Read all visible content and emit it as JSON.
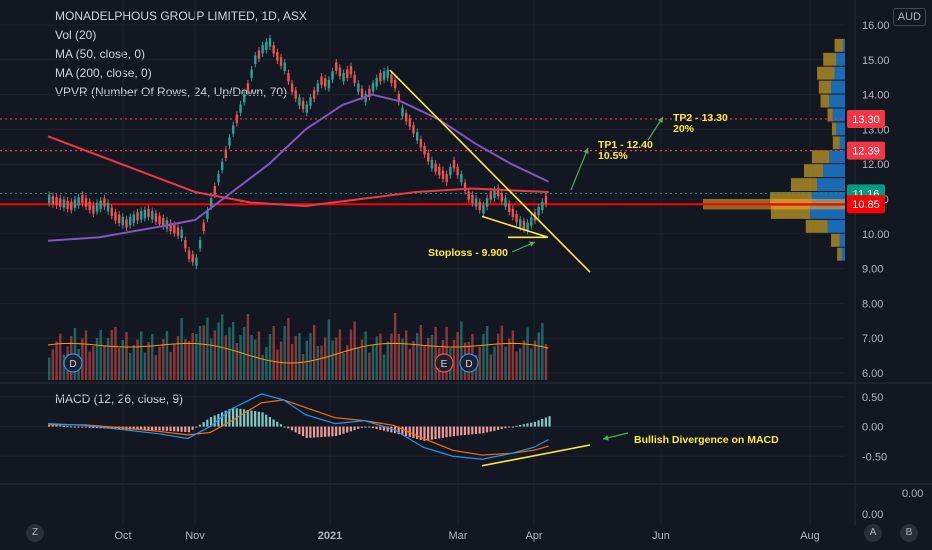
{
  "header": {
    "title": "MONADELPHOUS GROUP LIMITED, 1D, ASX",
    "indicators": [
      "Vol (20)",
      "MA (50, close, 0)",
      "MA (200, close, 0)",
      "VPVR (Number Of Rows, 24, Up/Down, 70)"
    ],
    "macd_label": "MACD (12, 26, close, 9)"
  },
  "currency": "AUD",
  "nav": {
    "left": "Z",
    "right_a": "A",
    "right_b": "B"
  },
  "colors": {
    "background": "#131722",
    "up": "#26a69a",
    "down": "#ef5350",
    "ma50": "#7e57c2",
    "ma200": "#f23645",
    "annotation": "#ffeb3b",
    "arrow": "#4caf50",
    "macd": "#2196f3",
    "signal": "#ff6d00",
    "grid": "#1e222d",
    "text": "#b2b5be"
  },
  "chart_data": {
    "type": "candlestick",
    "price_axis": {
      "ticks": [
        "16.00",
        "15.00",
        "14.00",
        "13.00",
        "12.00",
        "11.00",
        "10.00",
        "9.00",
        "8.00",
        "7.00",
        "6.00"
      ],
      "range": [
        5.8,
        16.2
      ]
    },
    "macd_axis": {
      "ticks": [
        "0.50",
        "0.00",
        "-0.50"
      ],
      "range": [
        -0.9,
        0.65
      ]
    },
    "extra_axis": {
      "ticks": [
        "0.00",
        "0.00"
      ]
    },
    "time_axis": {
      "labels": [
        "Oct",
        "Nov",
        "2021",
        "Mar",
        "Apr",
        "Jun",
        "Aug"
      ]
    },
    "price_labels": [
      {
        "value": 13.3,
        "text": "13.30",
        "color": "#f23645"
      },
      {
        "value": 12.39,
        "text": "12.39",
        "color": "#f23645"
      },
      {
        "value": 11.16,
        "text": "11.16",
        "color": "#089981"
      },
      {
        "value": 10.85,
        "text": "10.85",
        "color": "#ff0000"
      }
    ],
    "horizontal_lines": [
      {
        "value": 13.3,
        "style": "dotted",
        "color": "#f23645"
      },
      {
        "value": 12.39,
        "style": "dotted",
        "color": "#f23645"
      },
      {
        "value": 11.16,
        "style": "dotted",
        "color": "#089981"
      },
      {
        "value": 10.85,
        "style": "solid",
        "color": "#ff0000"
      }
    ],
    "annotations": [
      {
        "text": "TP2 - 13.30",
        "sub": "20%",
        "price": 13.5
      },
      {
        "text": "TP1 - 12.40",
        "sub": "10.5%",
        "price": 12.5
      },
      {
        "text": "Stoploss - 9.900",
        "price": 9.6
      }
    ],
    "macd_annotation": "Bullish Divergence on MACD",
    "event_markers": [
      "D",
      "E",
      "D"
    ],
    "price_path": [
      [
        0,
        11.0
      ],
      [
        3,
        10.9
      ],
      [
        6,
        10.8
      ],
      [
        9,
        11.0
      ],
      [
        12,
        10.7
      ],
      [
        15,
        10.9
      ],
      [
        18,
        10.5
      ],
      [
        21,
        10.3
      ],
      [
        24,
        10.5
      ],
      [
        27,
        10.6
      ],
      [
        30,
        10.4
      ],
      [
        33,
        10.2
      ],
      [
        36,
        10.0
      ],
      [
        38,
        9.4
      ],
      [
        40,
        9.2
      ],
      [
        42,
        10.2
      ],
      [
        44,
        10.9
      ],
      [
        46,
        11.6
      ],
      [
        48,
        12.3
      ],
      [
        50,
        13.0
      ],
      [
        52,
        13.6
      ],
      [
        54,
        14.2
      ],
      [
        56,
        15.0
      ],
      [
        58,
        15.3
      ],
      [
        60,
        15.5
      ],
      [
        62,
        15.1
      ],
      [
        64,
        14.8
      ],
      [
        66,
        14.2
      ],
      [
        68,
        13.8
      ],
      [
        70,
        13.6
      ],
      [
        72,
        14.0
      ],
      [
        74,
        14.4
      ],
      [
        76,
        14.3
      ],
      [
        78,
        14.8
      ],
      [
        80,
        14.5
      ],
      [
        82,
        14.7
      ],
      [
        84,
        14.2
      ],
      [
        86,
        13.9
      ],
      [
        88,
        14.2
      ],
      [
        90,
        14.5
      ],
      [
        92,
        14.6
      ],
      [
        94,
        14.3
      ],
      [
        96,
        13.5
      ],
      [
        98,
        13.2
      ],
      [
        100,
        12.8
      ],
      [
        102,
        12.4
      ],
      [
        104,
        12.0
      ],
      [
        106,
        11.8
      ],
      [
        108,
        11.6
      ],
      [
        110,
        12.0
      ],
      [
        112,
        11.6
      ],
      [
        114,
        11.1
      ],
      [
        116,
        10.9
      ],
      [
        118,
        10.7
      ],
      [
        120,
        11.1
      ],
      [
        122,
        11.2
      ],
      [
        124,
        10.9
      ],
      [
        126,
        10.6
      ],
      [
        128,
        10.3
      ],
      [
        130,
        10.2
      ],
      [
        132,
        10.5
      ],
      [
        134,
        10.8
      ],
      [
        136,
        11.16
      ]
    ],
    "ma50": [
      [
        0,
        9.8
      ],
      [
        14,
        9.9
      ],
      [
        30,
        10.2
      ],
      [
        40,
        10.4
      ],
      [
        50,
        11.2
      ],
      [
        60,
        12.0
      ],
      [
        70,
        13.0
      ],
      [
        80,
        13.7
      ],
      [
        88,
        14.0
      ],
      [
        96,
        13.8
      ],
      [
        106,
        13.3
      ],
      [
        116,
        12.6
      ],
      [
        126,
        12.0
      ],
      [
        136,
        11.5
      ]
    ],
    "ma200": [
      [
        0,
        12.8
      ],
      [
        20,
        12.0
      ],
      [
        40,
        11.2
      ],
      [
        55,
        10.9
      ],
      [
        70,
        10.8
      ],
      [
        85,
        11.0
      ],
      [
        100,
        11.2
      ],
      [
        115,
        11.3
      ],
      [
        136,
        11.2
      ]
    ],
    "macd_line": [
      [
        0,
        0.05
      ],
      [
        10,
        0.02
      ],
      [
        20,
        -0.05
      ],
      [
        30,
        -0.12
      ],
      [
        38,
        -0.2
      ],
      [
        44,
        0.0
      ],
      [
        50,
        0.3
      ],
      [
        58,
        0.55
      ],
      [
        64,
        0.45
      ],
      [
        70,
        0.2
      ],
      [
        78,
        0.05
      ],
      [
        86,
        0.1
      ],
      [
        94,
        -0.05
      ],
      [
        102,
        -0.35
      ],
      [
        110,
        -0.5
      ],
      [
        118,
        -0.55
      ],
      [
        126,
        -0.45
      ],
      [
        132,
        -0.35
      ],
      [
        136,
        -0.22
      ]
    ],
    "signal_line": [
      [
        0,
        0.03
      ],
      [
        10,
        0.03
      ],
      [
        20,
        -0.02
      ],
      [
        30,
        -0.08
      ],
      [
        38,
        -0.14
      ],
      [
        44,
        -0.1
      ],
      [
        50,
        0.1
      ],
      [
        58,
        0.4
      ],
      [
        64,
        0.45
      ],
      [
        70,
        0.32
      ],
      [
        78,
        0.15
      ],
      [
        86,
        0.1
      ],
      [
        94,
        0.02
      ],
      [
        102,
        -0.2
      ],
      [
        110,
        -0.4
      ],
      [
        118,
        -0.48
      ],
      [
        126,
        -0.45
      ],
      [
        132,
        -0.4
      ],
      [
        136,
        -0.33
      ]
    ],
    "volume_profile": [
      {
        "price": 15.4,
        "up": 10,
        "down": 2
      },
      {
        "price": 15.0,
        "up": 15,
        "down": 10
      },
      {
        "price": 14.6,
        "up": 20,
        "down": 12
      },
      {
        "price": 14.2,
        "up": 14,
        "down": 16
      },
      {
        "price": 13.8,
        "up": 10,
        "down": 18
      },
      {
        "price": 13.4,
        "up": 6,
        "down": 14
      },
      {
        "price": 13.0,
        "up": 5,
        "down": 10
      },
      {
        "price": 12.6,
        "up": 8,
        "down": 6
      },
      {
        "price": 12.2,
        "up": 20,
        "down": 18
      },
      {
        "price": 11.8,
        "up": 22,
        "down": 25
      },
      {
        "price": 11.4,
        "up": 30,
        "down": 32
      },
      {
        "price": 11.0,
        "up": 48,
        "down": 38
      },
      {
        "price": 10.6,
        "up": 45,
        "down": 40
      },
      {
        "price": 10.2,
        "up": 25,
        "down": 20
      },
      {
        "price": 9.8,
        "up": 10,
        "down": 6
      },
      {
        "price": 9.4,
        "up": 5,
        "down": 4
      }
    ]
  }
}
